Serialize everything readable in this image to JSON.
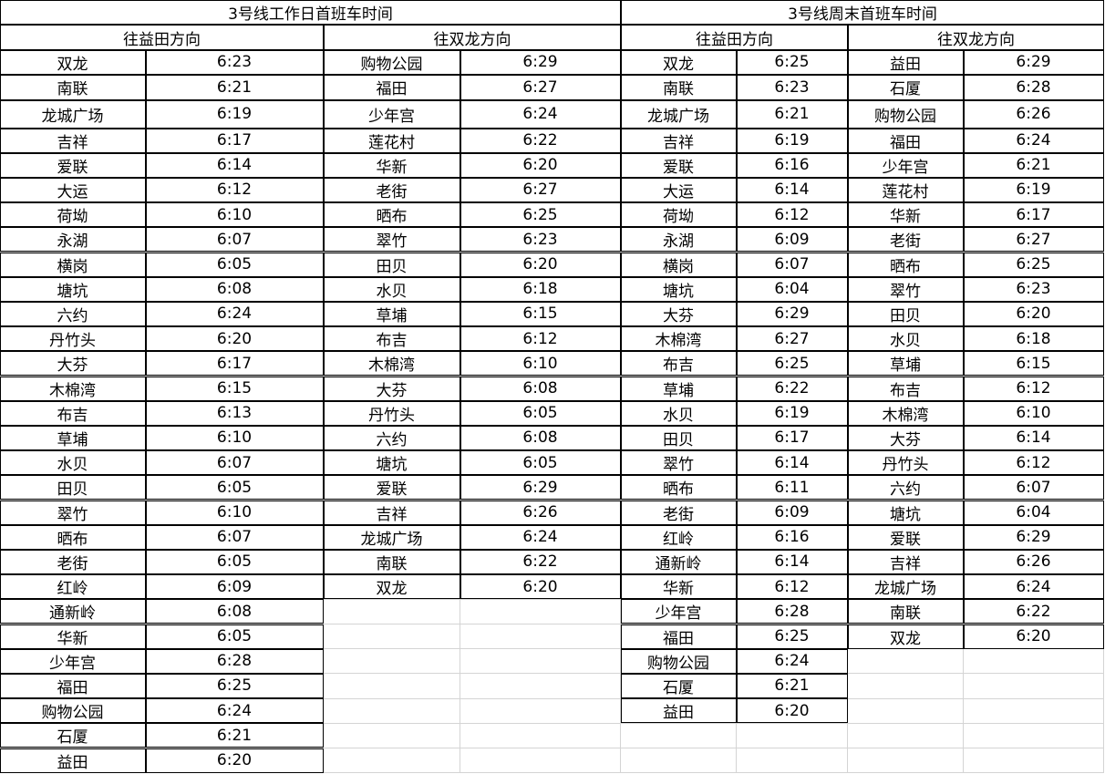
{
  "weekday": {
    "title": "3号线工作日首班车时间",
    "to_yitian": {
      "label": "往益田方向",
      "rows": [
        [
          "双龙",
          "6:23"
        ],
        [
          "南联",
          "6:21"
        ],
        [
          "龙城广场",
          "6:19"
        ],
        [
          "吉祥",
          "6:17"
        ],
        [
          "爱联",
          "6:14"
        ],
        [
          "大运",
          "6:12"
        ],
        [
          "荷坳",
          "6:10"
        ],
        [
          "永湖",
          "6:07"
        ],
        [
          "横岗",
          "6:05"
        ],
        [
          "塘坑",
          "6:08"
        ],
        [
          "六约",
          "6:24"
        ],
        [
          "丹竹头",
          "6:20"
        ],
        [
          "大芬",
          "6:17"
        ],
        [
          "木棉湾",
          "6:15"
        ],
        [
          "布吉",
          "6:13"
        ],
        [
          "草埔",
          "6:10"
        ],
        [
          "水贝",
          "6:07"
        ],
        [
          "田贝",
          "6:05"
        ],
        [
          "翠竹",
          "6:10"
        ],
        [
          "晒布",
          "6:07"
        ],
        [
          "老街",
          "6:05"
        ],
        [
          "红岭",
          "6:09"
        ],
        [
          "通新岭",
          "6:08"
        ],
        [
          "华新",
          "6:05"
        ],
        [
          "少年宫",
          "6:28"
        ],
        [
          "福田",
          "6:25"
        ],
        [
          "购物公园",
          "6:24"
        ],
        [
          "石厦",
          "6:21"
        ],
        [
          "益田",
          "6:20"
        ]
      ]
    },
    "to_shuanglong": {
      "label": "往双龙方向",
      "rows": [
        [
          "购物公园",
          "6:29"
        ],
        [
          "福田",
          "6:27"
        ],
        [
          "少年宫",
          "6:24"
        ],
        [
          "莲花村",
          "6:22"
        ],
        [
          "华新",
          "6:20"
        ],
        [
          "老街",
          "6:27"
        ],
        [
          "晒布",
          "6:25"
        ],
        [
          "翠竹",
          "6:23"
        ],
        [
          "田贝",
          "6:20"
        ],
        [
          "水贝",
          "6:18"
        ],
        [
          "草埔",
          "6:15"
        ],
        [
          "布吉",
          "6:12"
        ],
        [
          "木棉湾",
          "6:10"
        ],
        [
          "大芬",
          "6:08"
        ],
        [
          "丹竹头",
          "6:05"
        ],
        [
          "六约",
          "6:08"
        ],
        [
          "塘坑",
          "6:05"
        ],
        [
          "爱联",
          "6:29"
        ],
        [
          "吉祥",
          "6:26"
        ],
        [
          "龙城广场",
          "6:24"
        ],
        [
          "南联",
          "6:22"
        ],
        [
          "双龙",
          "6:20"
        ]
      ]
    }
  },
  "weekend": {
    "title": "3号线周末首班车时间",
    "to_yitian": {
      "label": "往益田方向",
      "rows": [
        [
          "双龙",
          "6:25"
        ],
        [
          "南联",
          "6:23"
        ],
        [
          "龙城广场",
          "6:21"
        ],
        [
          "吉祥",
          "6:19"
        ],
        [
          "爱联",
          "6:16"
        ],
        [
          "大运",
          "6:14"
        ],
        [
          "荷坳",
          "6:12"
        ],
        [
          "永湖",
          "6:09"
        ],
        [
          "横岗",
          "6:07"
        ],
        [
          "塘坑",
          "6:04"
        ],
        [
          "大芬",
          "6:29"
        ],
        [
          "木棉湾",
          "6:27"
        ],
        [
          "布吉",
          "6:25"
        ],
        [
          "草埔",
          "6:22"
        ],
        [
          "水贝",
          "6:19"
        ],
        [
          "田贝",
          "6:17"
        ],
        [
          "翠竹",
          "6:14"
        ],
        [
          "晒布",
          "6:11"
        ],
        [
          "老街",
          "6:09"
        ],
        [
          "红岭",
          "6:16"
        ],
        [
          "通新岭",
          "6:14"
        ],
        [
          "华新",
          "6:12"
        ],
        [
          "少年宫",
          "6:28"
        ],
        [
          "福田",
          "6:25"
        ],
        [
          "购物公园",
          "6:24"
        ],
        [
          "石厦",
          "6:21"
        ],
        [
          "益田",
          "6:20"
        ]
      ]
    },
    "to_shuanglong": {
      "label": "往双龙方向",
      "rows": [
        [
          "益田",
          "6:29"
        ],
        [
          "石厦",
          "6:28"
        ],
        [
          "购物公园",
          "6:26"
        ],
        [
          "福田",
          "6:24"
        ],
        [
          "少年宫",
          "6:21"
        ],
        [
          "莲花村",
          "6:19"
        ],
        [
          "华新",
          "6:17"
        ],
        [
          "老街",
          "6:27"
        ],
        [
          "晒布",
          "6:25"
        ],
        [
          "翠竹",
          "6:23"
        ],
        [
          "田贝",
          "6:20"
        ],
        [
          "水贝",
          "6:18"
        ],
        [
          "草埔",
          "6:15"
        ],
        [
          "布吉",
          "6:12"
        ],
        [
          "木棉湾",
          "6:10"
        ],
        [
          "大芬",
          "6:14"
        ],
        [
          "丹竹头",
          "6:12"
        ],
        [
          "六约",
          "6:07"
        ],
        [
          "塘坑",
          "6:04"
        ],
        [
          "爱联",
          "6:29"
        ],
        [
          "吉祥",
          "6:26"
        ],
        [
          "龙城广场",
          "6:24"
        ],
        [
          "南联",
          "6:22"
        ],
        [
          "双龙",
          "6:20"
        ]
      ]
    }
  }
}
